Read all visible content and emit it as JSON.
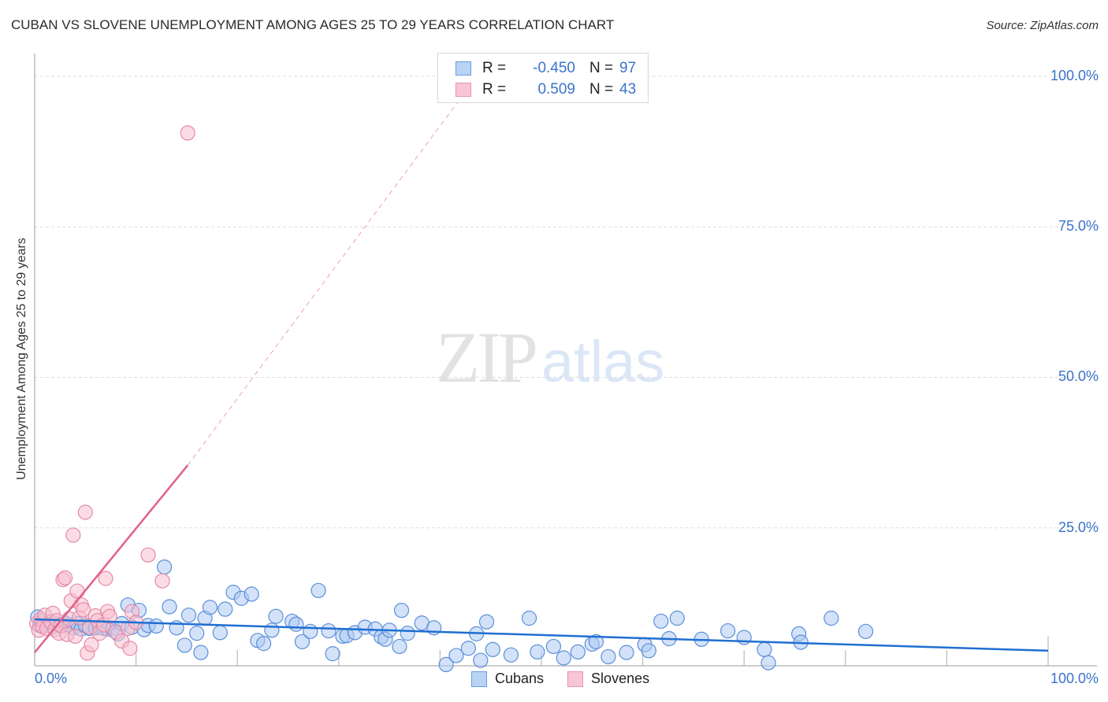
{
  "header": {
    "title": "CUBAN VS SLOVENE UNEMPLOYMENT AMONG AGES 25 TO 29 YEARS CORRELATION CHART",
    "source": "Source: ZipAtlas.com"
  },
  "axes": {
    "ylabel": "Unemployment Among Ages 25 to 29 years",
    "yticks": [
      "100.0%",
      "75.0%",
      "50.0%",
      "25.0%"
    ],
    "xtick_left": "0.0%",
    "xtick_right": "100.0%"
  },
  "legend": {
    "rows": [
      {
        "r_label": "R =",
        "r_value": "-0.450",
        "n_label": "N =",
        "n_value": "97"
      },
      {
        "r_label": "R =",
        "r_value": "0.509",
        "n_label": "N =",
        "n_value": "43"
      }
    ]
  },
  "bottom_legend": {
    "items": [
      {
        "label": "Cubans"
      },
      {
        "label": "Slovenes"
      }
    ]
  },
  "watermark": {
    "zip": "ZIP",
    "atlas": "atlas"
  },
  "colors": {
    "cubans_fill": "#aecbf2",
    "cubans_stroke": "#5b8fd9",
    "cubans_line": "#1f6fd1",
    "slovenes_fill": "#f7bfd0",
    "slovenes_stroke": "#e58aa6",
    "slovenes_line": "#e0608a",
    "tick_text": "#3b73c9",
    "grid": "#dddddd",
    "axis": "#bbbbbb"
  },
  "chart_data": {
    "type": "scatter",
    "title": "CUBAN VS SLOVENE UNEMPLOYMENT AMONG AGES 25 TO 29 YEARS CORRELATION CHART",
    "xlabel": "",
    "ylabel": "Unemployment Among Ages 25 to 29 years",
    "xlim": [
      0,
      100
    ],
    "ylim": [
      0,
      100
    ],
    "x_ticks": [
      "0.0%",
      "100.0%"
    ],
    "y_ticks": [
      "25.0%",
      "50.0%",
      "75.0%",
      "100.0%"
    ],
    "grid": "horizontal dashed",
    "legend_position": "top-center",
    "series": [
      {
        "name": "Cubans",
        "R": -0.45,
        "N": 97,
        "trend": {
          "x": [
            0,
            100
          ],
          "y": [
            9.8,
            4.6
          ],
          "style": "solid"
        },
        "points": [
          [
            0.3,
            10.2
          ],
          [
            0.5,
            8.8
          ],
          [
            0.8,
            9.5
          ],
          [
            1.2,
            8.9
          ],
          [
            1.5,
            9.3
          ],
          [
            1.8,
            8.6
          ],
          [
            2.2,
            9.0
          ],
          [
            2.6,
            8.7
          ],
          [
            3.0,
            9.2
          ],
          [
            3.4,
            8.9
          ],
          [
            3.8,
            8.4
          ],
          [
            4.2,
            9.1
          ],
          [
            4.6,
            8.2
          ],
          [
            5.0,
            8.8
          ],
          [
            5.4,
            8.3
          ],
          [
            6.0,
            8.4
          ],
          [
            6.4,
            8.5
          ],
          [
            6.8,
            8.3
          ],
          [
            7.2,
            8.2
          ],
          [
            7.7,
            8.3
          ],
          [
            8.2,
            7.4
          ],
          [
            8.6,
            9.1
          ],
          [
            9.2,
            12.2
          ],
          [
            9.6,
            8.5
          ],
          [
            10.3,
            11.3
          ],
          [
            10.8,
            8.1
          ],
          [
            11.2,
            8.8
          ],
          [
            12.0,
            8.7
          ],
          [
            12.8,
            18.5
          ],
          [
            13.3,
            11.9
          ],
          [
            14.0,
            8.4
          ],
          [
            14.8,
            5.5
          ],
          [
            15.2,
            10.5
          ],
          [
            16.0,
            7.5
          ],
          [
            16.4,
            4.3
          ],
          [
            16.8,
            10.0
          ],
          [
            17.3,
            11.8
          ],
          [
            18.3,
            7.6
          ],
          [
            18.8,
            11.5
          ],
          [
            19.6,
            14.3
          ],
          [
            20.4,
            13.3
          ],
          [
            21.4,
            14.0
          ],
          [
            22.0,
            6.3
          ],
          [
            22.6,
            5.8
          ],
          [
            23.4,
            8.0
          ],
          [
            23.8,
            10.3
          ],
          [
            25.4,
            9.5
          ],
          [
            25.8,
            9.0
          ],
          [
            26.4,
            6.1
          ],
          [
            27.2,
            7.8
          ],
          [
            28.0,
            14.6
          ],
          [
            29.0,
            7.9
          ],
          [
            29.4,
            4.1
          ],
          [
            30.4,
            7.0
          ],
          [
            30.8,
            7.1
          ],
          [
            31.6,
            7.6
          ],
          [
            32.6,
            8.5
          ],
          [
            33.6,
            8.2
          ],
          [
            34.2,
            6.9
          ],
          [
            34.6,
            6.5
          ],
          [
            35.0,
            8.0
          ],
          [
            36.0,
            5.3
          ],
          [
            36.2,
            11.3
          ],
          [
            36.8,
            7.5
          ],
          [
            38.2,
            9.2
          ],
          [
            39.4,
            8.4
          ],
          [
            40.6,
            2.3
          ],
          [
            41.6,
            3.8
          ],
          [
            42.8,
            5.0
          ],
          [
            43.6,
            7.4
          ],
          [
            44.0,
            3.0
          ],
          [
            44.6,
            9.4
          ],
          [
            45.2,
            4.8
          ],
          [
            47.0,
            3.9
          ],
          [
            48.8,
            10.0
          ],
          [
            49.6,
            4.4
          ],
          [
            51.2,
            5.3
          ],
          [
            52.2,
            3.4
          ],
          [
            53.6,
            4.4
          ],
          [
            55.0,
            5.7
          ],
          [
            55.4,
            6.1
          ],
          [
            56.6,
            3.6
          ],
          [
            58.4,
            4.3
          ],
          [
            60.2,
            5.6
          ],
          [
            60.6,
            4.6
          ],
          [
            61.8,
            9.5
          ],
          [
            62.6,
            6.6
          ],
          [
            63.4,
            10.0
          ],
          [
            65.8,
            6.5
          ],
          [
            68.4,
            7.9
          ],
          [
            70.0,
            6.8
          ],
          [
            72.0,
            4.8
          ],
          [
            72.4,
            2.6
          ],
          [
            75.4,
            7.4
          ],
          [
            75.6,
            6.0
          ],
          [
            78.6,
            10.0
          ],
          [
            82.0,
            7.8
          ]
        ]
      },
      {
        "name": "Slovenes",
        "R": 0.509,
        "N": 43,
        "trend": {
          "x": [
            0,
            15.1
          ],
          "y": [
            4.3,
            35.4
          ],
          "style": "solid",
          "extension": {
            "x": [
              15.1,
              44.8
            ],
            "y": [
              35.4,
              100
            ],
            "style": "dashed"
          }
        },
        "points": [
          [
            0.2,
            9.1
          ],
          [
            0.4,
            8.0
          ],
          [
            0.6,
            9.8
          ],
          [
            0.8,
            8.6
          ],
          [
            1.0,
            10.5
          ],
          [
            1.2,
            8.3
          ],
          [
            1.6,
            9.4
          ],
          [
            1.8,
            10.8
          ],
          [
            2.0,
            8.1
          ],
          [
            2.2,
            9.6
          ],
          [
            2.4,
            7.5
          ],
          [
            2.6,
            8.8
          ],
          [
            2.8,
            16.4
          ],
          [
            3.0,
            16.7
          ],
          [
            3.2,
            7.3
          ],
          [
            3.4,
            9.9
          ],
          [
            3.6,
            12.9
          ],
          [
            3.8,
            23.8
          ],
          [
            4.0,
            7.0
          ],
          [
            4.2,
            14.5
          ],
          [
            4.4,
            10.1
          ],
          [
            4.6,
            12.2
          ],
          [
            4.8,
            11.4
          ],
          [
            5.0,
            27.6
          ],
          [
            5.2,
            4.2
          ],
          [
            5.4,
            8.5
          ],
          [
            5.6,
            5.6
          ],
          [
            6.0,
            10.4
          ],
          [
            6.2,
            9.6
          ],
          [
            6.4,
            7.5
          ],
          [
            6.8,
            8.9
          ],
          [
            7.0,
            16.6
          ],
          [
            7.2,
            11.1
          ],
          [
            7.4,
            10.3
          ],
          [
            8.0,
            7.7
          ],
          [
            8.6,
            6.2
          ],
          [
            9.2,
            8.3
          ],
          [
            9.4,
            5.0
          ],
          [
            9.6,
            11.1
          ],
          [
            10.0,
            9.3
          ],
          [
            11.2,
            20.5
          ],
          [
            12.6,
            16.2
          ],
          [
            15.1,
            90.6
          ]
        ]
      }
    ]
  }
}
